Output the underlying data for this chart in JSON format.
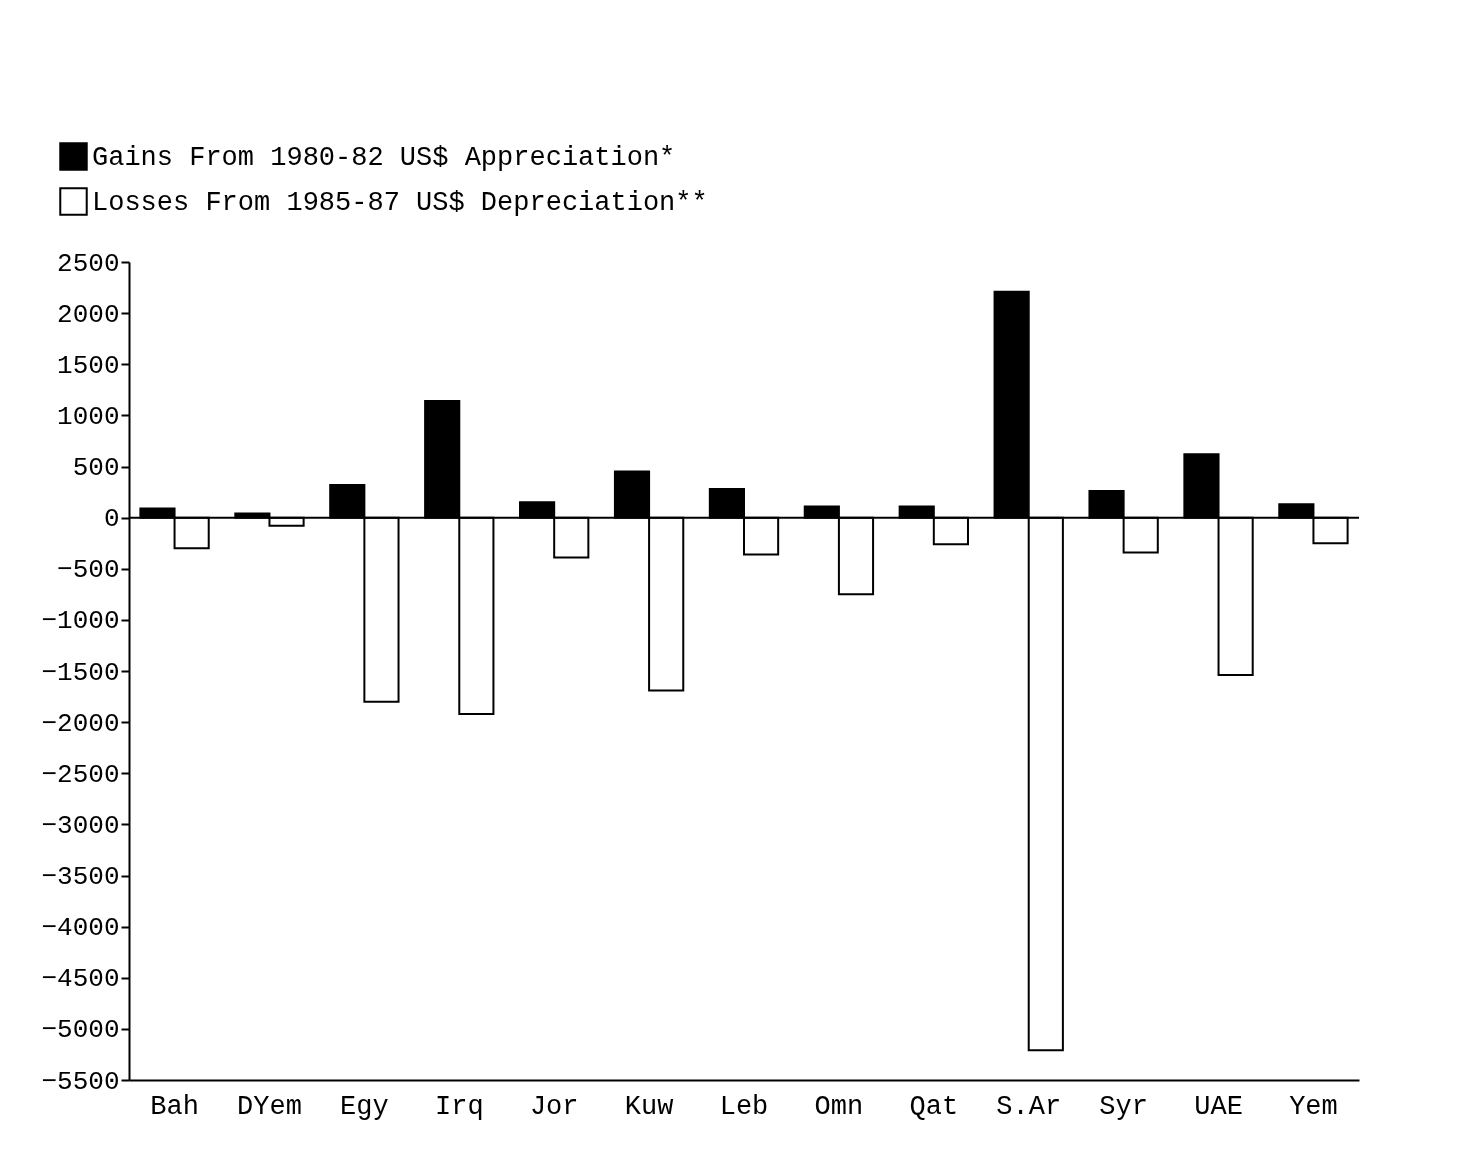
{
  "chart_data": {
    "type": "bar",
    "categories": [
      "Bah",
      "DYem",
      "Egy",
      "Irq",
      "Jor",
      "Kuw",
      "Leb",
      "Omn",
      "Qat",
      "S.Ar",
      "Syr",
      "UAE",
      "Yem"
    ],
    "series": [
      {
        "name": "Gains From 1980-82 US$ Appreciation*",
        "color": "#000000",
        "values": [
          90,
          40,
          320,
          1140,
          150,
          450,
          280,
          110,
          110,
          2210,
          260,
          620,
          130
        ]
      },
      {
        "name": "Losses From 1985-87 US$ Depreciation**",
        "color": "#ffffff",
        "values": [
          -300,
          -80,
          -1800,
          -1920,
          -390,
          -1690,
          -360,
          -750,
          -260,
          -5210,
          -340,
          -1540,
          -250
        ]
      }
    ],
    "ylim": [
      -5500,
      2500
    ],
    "yticks": [
      -5500,
      -5000,
      -4500,
      -4000,
      -3500,
      -3000,
      -2500,
      -2000,
      -1500,
      -1000,
      -500,
      0,
      500,
      1000,
      1500,
      2000,
      2500
    ],
    "ref_lines": [
      {
        "axis": "y",
        "value": 0
      }
    ],
    "grid": false,
    "legend": "top left"
  }
}
